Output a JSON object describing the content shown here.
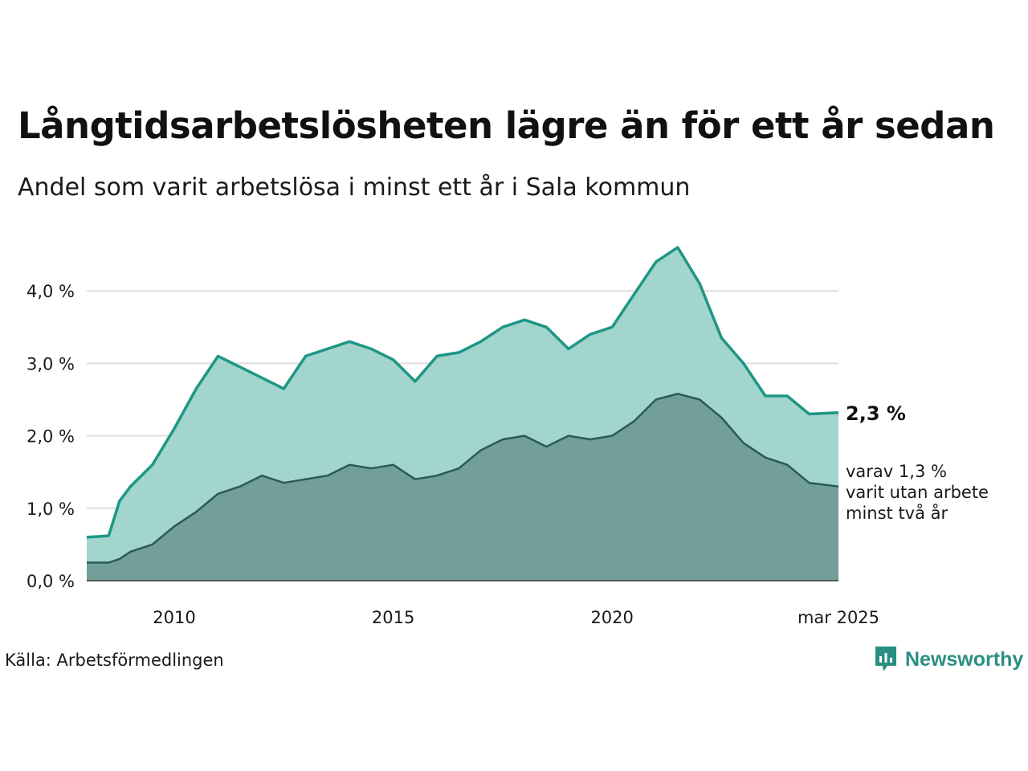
{
  "title": "Långtidsarbetslösheten lägre än för ett år sedan",
  "subtitle": "Andel som varit arbetslösa i minst ett år i Sala kommun",
  "source": "Källa: Arbetsförmedlingen",
  "brand": {
    "name": "Newsworthy",
    "color": "#2a8f83"
  },
  "colors": {
    "total_line": "#1e9686",
    "total_fill": "#a2d5cd",
    "long_line": "#2d5a53",
    "long_fill": "#729f98",
    "grid": "#dddddd"
  },
  "chart_data": {
    "type": "area",
    "y_ticks": [
      "0,0 %",
      "1,0 %",
      "2,0 %",
      "3,0 %",
      "4,0 %"
    ],
    "x_ticks": [
      "2010",
      "2015",
      "2020",
      "mar 2025"
    ],
    "ylim": [
      0,
      4.7
    ],
    "grid": true,
    "end_label_total": "2,3 %",
    "end_label_long": [
      "varav 1,3 %",
      "varit utan arbete",
      "minst två år"
    ],
    "x_keys": [
      2008.0,
      2008.5,
      2008.75,
      2009.0,
      2009.5,
      2010.0,
      2010.5,
      2011.0,
      2011.5,
      2012.0,
      2012.5,
      2013.0,
      2013.5,
      2014.0,
      2014.5,
      2015.0,
      2015.5,
      2016.0,
      2016.5,
      2017.0,
      2017.5,
      2018.0,
      2018.5,
      2019.0,
      2019.5,
      2020.0,
      2020.5,
      2021.0,
      2021.5,
      2022.0,
      2022.5,
      2023.0,
      2023.5,
      2024.0,
      2024.5,
      2025.17
    ],
    "series": [
      {
        "key": "total",
        "values": [
          0.6,
          0.62,
          1.1,
          1.3,
          1.6,
          2.1,
          2.65,
          3.1,
          2.95,
          2.8,
          2.65,
          3.1,
          3.2,
          3.3,
          3.2,
          3.05,
          2.75,
          3.1,
          3.15,
          3.3,
          3.5,
          3.6,
          3.5,
          3.2,
          3.4,
          3.5,
          3.95,
          4.4,
          4.6,
          4.1,
          3.35,
          3.0,
          2.55,
          2.55,
          2.3,
          2.32
        ]
      },
      {
        "key": "long",
        "values": [
          0.25,
          0.25,
          0.3,
          0.4,
          0.5,
          0.75,
          0.95,
          1.2,
          1.3,
          1.45,
          1.35,
          1.4,
          1.45,
          1.6,
          1.55,
          1.6,
          1.4,
          1.45,
          1.55,
          1.8,
          1.95,
          2.0,
          1.85,
          2.0,
          1.95,
          2.0,
          2.2,
          2.5,
          2.58,
          2.5,
          2.25,
          1.9,
          1.7,
          1.6,
          1.35,
          1.3
        ]
      }
    ]
  }
}
